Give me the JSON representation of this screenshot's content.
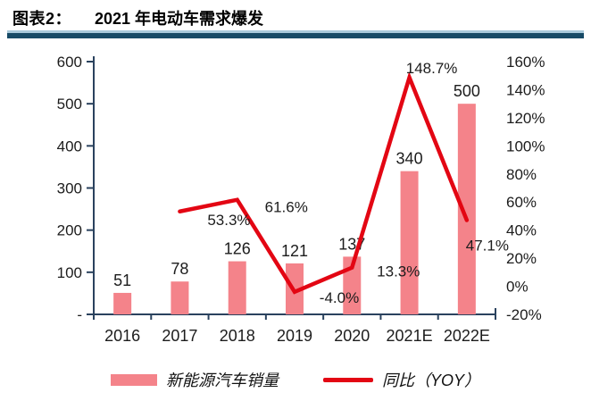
{
  "header": {
    "tag": "图表2：",
    "title": "2021 年电动车需求爆发"
  },
  "chart_data": {
    "type": "bar",
    "title": "图表2： 2021 年电动车需求爆发",
    "categories": [
      "2016",
      "2017",
      "2018",
      "2019",
      "2020",
      "2021E",
      "2022E"
    ],
    "series": [
      {
        "name": "新能源汽车销量",
        "type": "bar",
        "axis": "left",
        "values": [
          51,
          78,
          126,
          121,
          137,
          340,
          500
        ]
      },
      {
        "name": "同比（YOY）",
        "type": "line",
        "axis": "right",
        "values": [
          null,
          53.3,
          61.6,
          -4.0,
          13.3,
          148.7,
          47.1
        ],
        "point_labels": [
          "",
          "53.3%",
          "61.6%",
          "-4.0%",
          "13.3%",
          "148.7%",
          "47.1%"
        ]
      }
    ],
    "bar_labels": [
      "51",
      "78",
      "126",
      "121",
      "137",
      "340",
      "500"
    ],
    "left_axis": {
      "min": 0,
      "max": 600,
      "step": 100,
      "tick_labels": [
        "-",
        "100",
        "200",
        "300",
        "400",
        "500",
        "600"
      ]
    },
    "right_axis": {
      "min": -20,
      "max": 160,
      "step": 20,
      "tick_labels": [
        "-20%",
        "0%",
        "20%",
        "40%",
        "60%",
        "80%",
        "100%",
        "120%",
        "140%",
        "160%"
      ]
    },
    "grid": false,
    "legend_position": "bottom",
    "line_label_offsets": [
      null,
      [
        55,
        15
      ],
      [
        55,
        14
      ],
      [
        50,
        12
      ],
      [
        52,
        10
      ],
      [
        25,
        -5
      ],
      [
        23,
        34
      ]
    ]
  },
  "legend": {
    "items": [
      {
        "label": "新能源汽车销量",
        "type": "bar"
      },
      {
        "label": "同比（YOY）",
        "type": "line"
      }
    ]
  },
  "colors": {
    "bar": "#F4838A",
    "line": "#E30613",
    "axis": "#2A425E",
    "text": "#1C1C1C",
    "rule_dark": "#174A66",
    "rule_light": "#A9C9DB"
  }
}
